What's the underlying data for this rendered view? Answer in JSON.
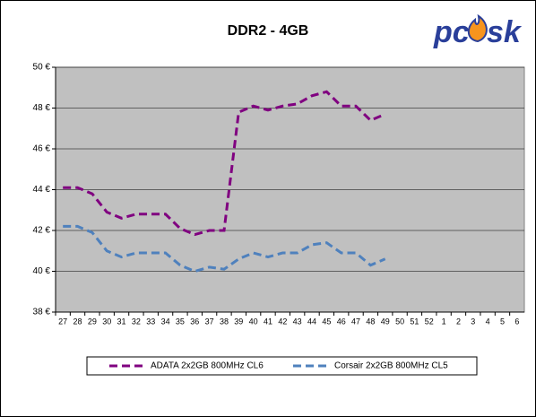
{
  "logo": {
    "left": "pc",
    "right": "sk"
  },
  "chart_data": {
    "type": "line",
    "title": "DDR2 - 4GB",
    "categories": [
      "27",
      "28",
      "29",
      "30",
      "31",
      "32",
      "33",
      "34",
      "35",
      "36",
      "37",
      "38",
      "39",
      "40",
      "41",
      "42",
      "43",
      "44",
      "45",
      "46",
      "47",
      "48",
      "49",
      "50",
      "51",
      "52",
      "1",
      "2",
      "3",
      "4",
      "5",
      "6"
    ],
    "series": [
      {
        "name": "ADATA 2x2GB 800MHz CL6",
        "color": "#800080",
        "values": [
          44.1,
          44.1,
          43.8,
          42.9,
          42.6,
          42.8,
          42.8,
          42.8,
          42.1,
          41.8,
          42.0,
          42.0,
          47.8,
          48.1,
          47.9,
          48.1,
          48.2,
          48.6,
          48.8,
          48.1,
          48.1,
          47.4,
          47.7,
          null,
          null,
          null,
          null,
          null,
          null,
          null,
          null,
          null
        ]
      },
      {
        "name": "Corsair 2x2GB 800MHz CL5",
        "color": "#4f81bd",
        "values": [
          42.2,
          42.2,
          41.9,
          41.0,
          40.7,
          40.9,
          40.9,
          40.9,
          40.3,
          40.0,
          40.2,
          40.1,
          40.6,
          40.9,
          40.7,
          40.9,
          40.9,
          41.3,
          41.4,
          40.9,
          40.9,
          40.3,
          40.6,
          null,
          null,
          null,
          null,
          null,
          null,
          null,
          null,
          null
        ]
      }
    ],
    "ylim": [
      38,
      50
    ],
    "yticks": [
      {
        "value": 38,
        "label": "38 €"
      },
      {
        "value": 40,
        "label": "40 €"
      },
      {
        "value": 42,
        "label": "42 €"
      },
      {
        "value": 44,
        "label": "44 €"
      },
      {
        "value": 46,
        "label": "46 €"
      },
      {
        "value": 48,
        "label": "48 €"
      },
      {
        "value": 50,
        "label": "50 €"
      }
    ],
    "grid": true,
    "legend": "bottom"
  }
}
